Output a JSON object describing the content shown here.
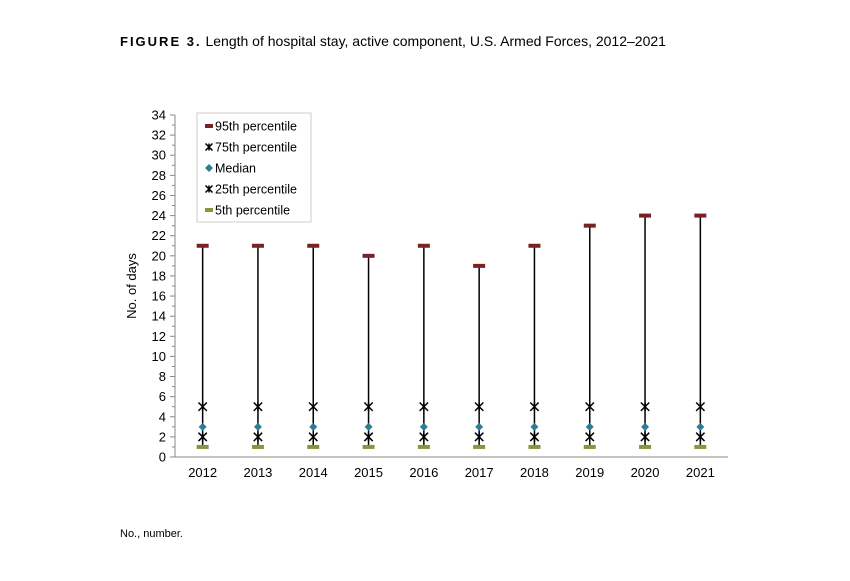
{
  "title": {
    "figure_label": "FIGURE 3.",
    "text": "Length of hospital stay, active component, U.S. Armed Forces, 2012–2021"
  },
  "footnote": "No., number.",
  "chart_data": {
    "type": "scatter",
    "title": "Length of hospital stay, active component, U.S. Armed Forces, 2012–2021",
    "xlabel": "",
    "ylabel": "No. of days",
    "ylim": [
      0,
      34
    ],
    "yticks": [
      0,
      2,
      4,
      6,
      8,
      10,
      12,
      14,
      16,
      18,
      20,
      22,
      24,
      26,
      28,
      30,
      32,
      34
    ],
    "categories": [
      "2012",
      "2013",
      "2014",
      "2015",
      "2016",
      "2017",
      "2018",
      "2019",
      "2020",
      "2021"
    ],
    "grid": false,
    "legend_position": "top-left",
    "series": [
      {
        "name": "95th percentile",
        "marker": "dash",
        "color": "#7b2125",
        "values": [
          21,
          21,
          21,
          20,
          21,
          19,
          21,
          23,
          24,
          24
        ]
      },
      {
        "name": "75th percentile",
        "marker": "x-star",
        "color": "#000000",
        "values": [
          5,
          5,
          5,
          5,
          5,
          5,
          5,
          5,
          5,
          5
        ]
      },
      {
        "name": "Median",
        "marker": "diamond",
        "color": "#2e7d96",
        "values": [
          3,
          3,
          3,
          3,
          3,
          3,
          3,
          3,
          3,
          3
        ]
      },
      {
        "name": "25th percentile",
        "marker": "x-star",
        "color": "#000000",
        "values": [
          2,
          2,
          2,
          2,
          2,
          2,
          2,
          2,
          2,
          2
        ]
      },
      {
        "name": "5th percentile",
        "marker": "dash",
        "color": "#7f9a3c",
        "values": [
          1,
          1,
          1,
          1,
          1,
          1,
          1,
          1,
          1,
          1
        ]
      }
    ]
  }
}
